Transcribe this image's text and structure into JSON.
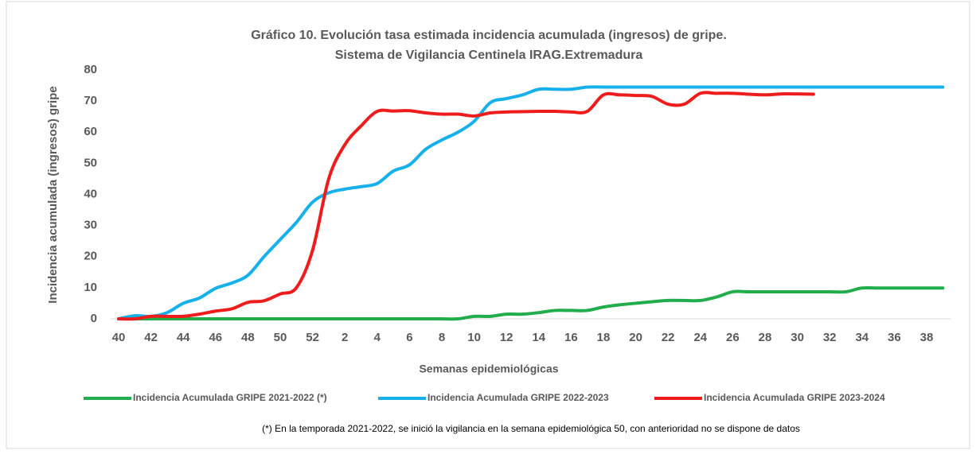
{
  "chart_data": {
    "type": "line",
    "title": "Gráfico 10. Evolución tasa estimada incidencia acumulada (ingresos) de gripe.",
    "subtitle": "Sistema de Vigilancia Centinela IRAG.Extremadura",
    "xlabel": "Semanas epidemiológicas",
    "ylabel": "Incidencia acumulada (ingresos) gripe",
    "note": "(*) En la temporada 2021-2022, se inició la vigilancia en la semana epidemiológica 50, con anterioridad no se dispone de datos",
    "categories": [
      40,
      null,
      42,
      null,
      44,
      null,
      46,
      null,
      48,
      null,
      50,
      null,
      52,
      null,
      2,
      null,
      4,
      null,
      6,
      null,
      8,
      null,
      10,
      null,
      12,
      null,
      14,
      null,
      16,
      null,
      18,
      null,
      20,
      null,
      22,
      null,
      24,
      null,
      26,
      null,
      28,
      null,
      30,
      null,
      32,
      null,
      34,
      null,
      36,
      null,
      38,
      null
    ],
    "ylim": [
      0,
      80
    ],
    "yticks": [
      0,
      10,
      20,
      30,
      40,
      50,
      60,
      70,
      80
    ],
    "grid": false,
    "legend": "bottom",
    "series": [
      {
        "name": "Incidencia Acumulada GRIPE 2021-2022 (*)",
        "color": "#21ad4b",
        "values": [
          0,
          0,
          0,
          0,
          0,
          0,
          0,
          0,
          0,
          0,
          0,
          0,
          0,
          0,
          0,
          0,
          0,
          0,
          0,
          0,
          0,
          0,
          0.8,
          0.8,
          1.5,
          1.5,
          2,
          2.7,
          2.7,
          2.7,
          3.8,
          4.5,
          5,
          5.5,
          5.9,
          5.9,
          5.9,
          7,
          8.7,
          8.7,
          8.7,
          8.7,
          8.7,
          8.7,
          8.7,
          8.7,
          9.9,
          9.9,
          9.9,
          9.9,
          9.9,
          9.9
        ]
      },
      {
        "name": "Incidencia Acumulada GRIPE 2022-2023",
        "color": "#16b1eb",
        "values": [
          0,
          1,
          0.8,
          2,
          5,
          6.7,
          9.8,
          11.5,
          14,
          20,
          25.5,
          31,
          37.5,
          40.5,
          41.7,
          42.5,
          43.5,
          47.5,
          49.5,
          54.5,
          57.5,
          60,
          63.5,
          69.5,
          70.8,
          72,
          73.8,
          73.8,
          73.8,
          74.5,
          74.5,
          74.5,
          74.5,
          74.5,
          74.5,
          74.5,
          74.5,
          74.5,
          74.5,
          74.5,
          74.5,
          74.5,
          74.5,
          74.5,
          74.5,
          74.5,
          74.5,
          74.5,
          74.5,
          74.5,
          74.5,
          74.5
        ]
      },
      {
        "name": "Incidencia Acumulada GRIPE 2023-2024",
        "color": "#ee1c1c",
        "values": [
          0,
          0,
          0.8,
          0.8,
          0.8,
          1.5,
          2.5,
          3.2,
          5.3,
          5.8,
          8,
          10,
          22,
          45,
          56,
          62,
          66.7,
          66.8,
          66.9,
          66.2,
          65.8,
          65.8,
          65.2,
          66.2,
          66.5,
          66.6,
          66.7,
          66.7,
          66.5,
          66.7,
          72,
          72,
          71.8,
          71.5,
          69,
          69,
          72.5,
          72.5,
          72.5,
          72.2,
          72,
          72.3,
          72.3,
          72.2,
          null,
          null,
          null,
          null,
          null,
          null,
          null,
          null
        ]
      }
    ]
  }
}
